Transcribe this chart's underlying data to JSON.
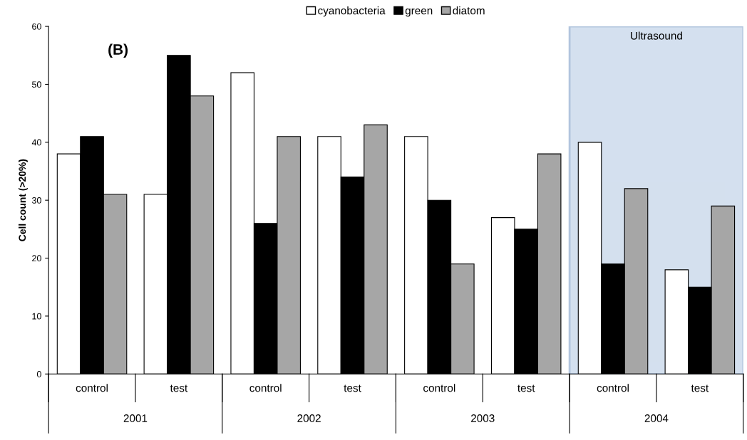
{
  "chart_data": {
    "type": "bar",
    "categories": [
      "control",
      "test",
      "control",
      "test",
      "control",
      "test",
      "control",
      "test"
    ],
    "series": [
      {
        "name": "cyanobacteria",
        "color": "#ffffff",
        "values": [
          38,
          31,
          52,
          41,
          41,
          27,
          40,
          18
        ]
      },
      {
        "name": "green",
        "color": "#000000",
        "values": [
          41,
          55,
          26,
          34,
          30,
          25,
          19,
          15
        ]
      },
      {
        "name": "diatom",
        "color": "#a6a6a6",
        "values": [
          31,
          48,
          41,
          43,
          19,
          38,
          32,
          29
        ]
      }
    ],
    "ylabel": "Cell count (>20%)",
    "ylim": [
      0,
      60
    ],
    "yticks": [
      0,
      10,
      20,
      30,
      40,
      50,
      60
    ],
    "annotations": [
      "(B)",
      "Ultrasound",
      "2001",
      "2002",
      "2003",
      "2004"
    ],
    "grid": false,
    "legend": "top"
  }
}
